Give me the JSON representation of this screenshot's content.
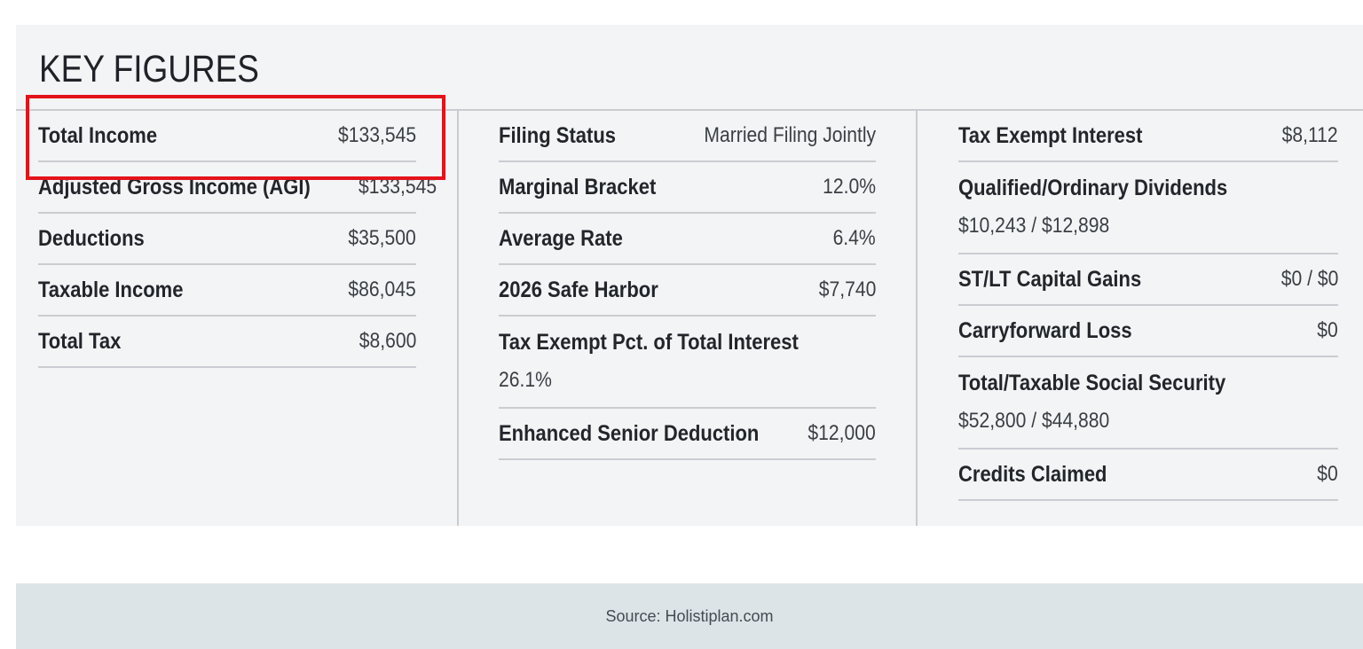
{
  "title": "KEY FIGURES",
  "col1": [
    {
      "label": "Total Income",
      "value": "$133,545"
    },
    {
      "label": "Adjusted Gross Income (AGI)",
      "value": "$133,545"
    },
    {
      "label": "Deductions",
      "value": "$35,500"
    },
    {
      "label": "Taxable Income",
      "value": "$86,045"
    },
    {
      "label": "Total Tax",
      "value": "$8,600"
    }
  ],
  "col2": [
    {
      "label": "Filing Status",
      "value": "Married Filing Jointly"
    },
    {
      "label": "Marginal Bracket",
      "value": "12.0%"
    },
    {
      "label": "Average Rate",
      "value": "6.4%"
    },
    {
      "label": "2026 Safe Harbor",
      "value": "$7,740"
    },
    {
      "label": "Tax Exempt Pct. of Total Interest",
      "value": "26.1%"
    },
    {
      "label": "Enhanced Senior Deduction",
      "value": "$12,000"
    }
  ],
  "col3": [
    {
      "label": "Tax Exempt Interest",
      "value": "$8,112"
    },
    {
      "label": "Qualified/Ordinary Dividends",
      "value": "$10,243 / $12,898"
    },
    {
      "label": "ST/LT Capital Gains",
      "value": "$0 / $0"
    },
    {
      "label": "Carryforward Loss",
      "value": "$0"
    },
    {
      "label": "Total/Taxable Social Security",
      "value": "$52,800 / $44,880"
    },
    {
      "label": "Credits Claimed",
      "value": "$0"
    }
  ],
  "footer": {
    "source": "Source: Holistiplan.com"
  },
  "colors": {
    "highlight": "#e3131b",
    "panel": "#f3f4f5",
    "footer": "#dde4e8"
  }
}
